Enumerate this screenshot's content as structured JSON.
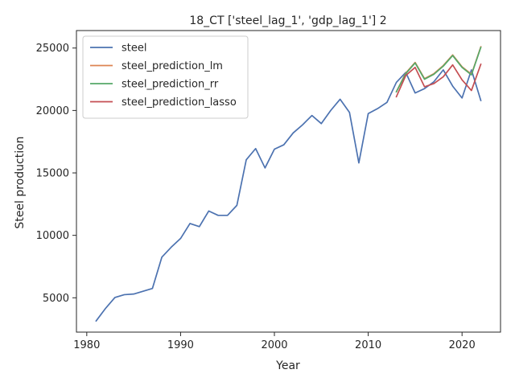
{
  "chart_data": {
    "type": "line",
    "title": "18_CT ['steel_lag_1', 'gdp_lag_1'] 2",
    "xlabel": "Year",
    "ylabel": "Steel production",
    "xlim": [
      1978.9,
      2024.1
    ],
    "ylim": [
      2250,
      26400
    ],
    "xticks": [
      1980,
      1990,
      2000,
      2010,
      2020
    ],
    "yticks": [
      5000,
      10000,
      15000,
      20000,
      25000
    ],
    "grid": false,
    "legend_position": "top-left",
    "series": [
      {
        "name": "steel",
        "color": "#4c72b0",
        "x": [
          1981,
          1982,
          1983,
          1984,
          1985,
          1986,
          1987,
          1988,
          1989,
          1990,
          1991,
          1992,
          1993,
          1994,
          1995,
          1996,
          1997,
          1998,
          1999,
          2000,
          2001,
          2002,
          2003,
          2004,
          2005,
          2006,
          2007,
          2008,
          2009,
          2010,
          2011,
          2012,
          2013,
          2014,
          2015,
          2016,
          2017,
          2018,
          2019,
          2020,
          2021,
          2022
        ],
        "y": [
          3150,
          4150,
          5020,
          5250,
          5300,
          5520,
          5750,
          8250,
          9050,
          9750,
          10950,
          10700,
          11950,
          11600,
          11600,
          12400,
          16050,
          16950,
          15400,
          16900,
          17250,
          18200,
          18850,
          19600,
          18950,
          20000,
          20900,
          19850,
          15800,
          19750,
          20150,
          20650,
          22250,
          23050,
          21400,
          21750,
          22300,
          23250,
          21950,
          21000,
          23250,
          20800
        ]
      },
      {
        "name": "steel_prediction_lm",
        "color": "#dd8452",
        "x": [
          2013,
          2014,
          2015,
          2016,
          2017,
          2018,
          2019,
          2020,
          2021,
          2022
        ],
        "y": [
          21500,
          23000,
          23850,
          22550,
          22950,
          23600,
          24450,
          23500,
          22900,
          25100
        ]
      },
      {
        "name": "steel_prediction_rr",
        "color": "#55a868",
        "x": [
          2013,
          2014,
          2015,
          2016,
          2017,
          2018,
          2019,
          2020,
          2021,
          2022
        ],
        "y": [
          21500,
          22950,
          23800,
          22500,
          22900,
          23550,
          24400,
          23450,
          22850,
          25050
        ]
      },
      {
        "name": "steel_prediction_lasso",
        "color": "#c44e52",
        "x": [
          2013,
          2014,
          2015,
          2016,
          2017,
          2018,
          2019,
          2020,
          2021,
          2022
        ],
        "y": [
          21100,
          22800,
          23450,
          21900,
          22150,
          22700,
          23650,
          22450,
          21600,
          23700
        ]
      }
    ]
  }
}
